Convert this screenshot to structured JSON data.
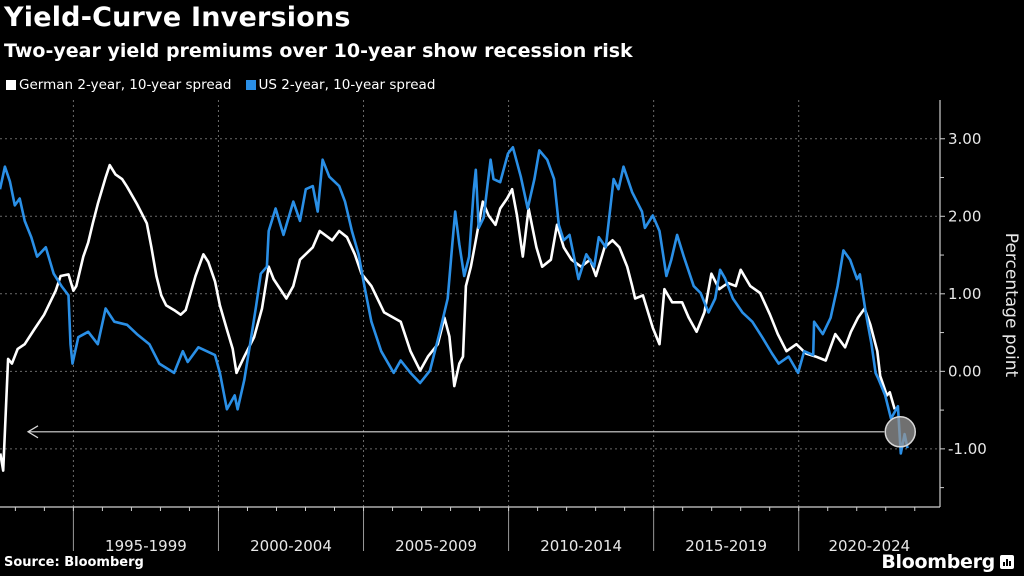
{
  "header": {
    "title": "Yield-Curve Inversions",
    "subtitle": "Two-year yield premiums over 10-year show recession risk"
  },
  "footer": {
    "source": "Source: Bloomberg",
    "brand": "Bloomberg"
  },
  "chart_data": {
    "type": "line",
    "title": "Yield-Curve Inversions",
    "subtitle": "Two-year yield premiums over 10-year show recession risk",
    "xlabel": "",
    "ylabel": "Percentage point",
    "xlim": [
      1992.47,
      2024.87
    ],
    "ylim": [
      -1.75,
      3.5
    ],
    "yticks": [
      3.0,
      2.0,
      1.0,
      0.0,
      -1.0
    ],
    "ytick_labels": [
      "3.00",
      "2.00",
      "1.00",
      "0.00",
      "-1.00"
    ],
    "x_groups": [
      {
        "label": "1995-1999",
        "start": 1995,
        "end": 2000
      },
      {
        "label": "2000-2004",
        "start": 2000,
        "end": 2005
      },
      {
        "label": "2005-2009",
        "start": 2005,
        "end": 2010
      },
      {
        "label": "2010-2014",
        "start": 2010,
        "end": 2015
      },
      {
        "label": "2015-2019",
        "start": 2015,
        "end": 2020
      },
      {
        "label": "2020-2024",
        "start": 2020,
        "end": 2025
      }
    ],
    "grid": true,
    "legend_position": "top-left",
    "annotation": {
      "type": "arrow-left",
      "value": -0.78,
      "highlight_year": 2023.5,
      "highlight_value": -0.78
    },
    "series": [
      {
        "name": "German 2-year, 10-year spread",
        "color": "#ffffff",
        "points": [
          [
            1992.48,
            -1.06
          ],
          [
            1992.58,
            -1.28
          ],
          [
            1992.75,
            0.16
          ],
          [
            1992.88,
            0.1
          ],
          [
            1993.08,
            0.29
          ],
          [
            1993.32,
            0.35
          ],
          [
            1993.65,
            0.54
          ],
          [
            1993.99,
            0.73
          ],
          [
            1994.22,
            0.91
          ],
          [
            1994.39,
            1.04
          ],
          [
            1994.56,
            1.23
          ],
          [
            1994.83,
            1.25
          ],
          [
            1995.0,
            1.04
          ],
          [
            1995.1,
            1.1
          ],
          [
            1995.34,
            1.48
          ],
          [
            1995.51,
            1.66
          ],
          [
            1995.67,
            1.91
          ],
          [
            1995.84,
            2.16
          ],
          [
            1996.11,
            2.5
          ],
          [
            1996.25,
            2.66
          ],
          [
            1996.45,
            2.54
          ],
          [
            1996.68,
            2.48
          ],
          [
            1996.85,
            2.38
          ],
          [
            1997.19,
            2.16
          ],
          [
            1997.53,
            1.91
          ],
          [
            1997.69,
            1.6
          ],
          [
            1997.86,
            1.23
          ],
          [
            1998.03,
            0.98
          ],
          [
            1998.2,
            0.85
          ],
          [
            1998.47,
            0.79
          ],
          [
            1998.7,
            0.73
          ],
          [
            1998.87,
            0.79
          ],
          [
            1999.21,
            1.23
          ],
          [
            1999.48,
            1.51
          ],
          [
            1999.65,
            1.41
          ],
          [
            1999.88,
            1.16
          ],
          [
            2000.05,
            0.85
          ],
          [
            2000.29,
            0.54
          ],
          [
            2000.49,
            0.29
          ],
          [
            2000.62,
            -0.02
          ],
          [
            2000.89,
            0.19
          ],
          [
            2001.23,
            0.44
          ],
          [
            2001.5,
            0.81
          ],
          [
            2001.73,
            1.35
          ],
          [
            2001.9,
            1.19
          ],
          [
            2002.34,
            0.94
          ],
          [
            2002.58,
            1.1
          ],
          [
            2002.81,
            1.44
          ],
          [
            2003.25,
            1.6
          ],
          [
            2003.49,
            1.81
          ],
          [
            2003.92,
            1.69
          ],
          [
            2004.16,
            1.81
          ],
          [
            2004.43,
            1.73
          ],
          [
            2004.7,
            1.51
          ],
          [
            2004.93,
            1.26
          ],
          [
            2005.27,
            1.1
          ],
          [
            2005.71,
            0.76
          ],
          [
            2006.28,
            0.64
          ],
          [
            2006.62,
            0.26
          ],
          [
            2006.95,
            0.01
          ],
          [
            2007.22,
            0.19
          ],
          [
            2007.56,
            0.35
          ],
          [
            2007.79,
            0.69
          ],
          [
            2007.96,
            0.45
          ],
          [
            2008.13,
            -0.19
          ],
          [
            2008.3,
            0.1
          ],
          [
            2008.43,
            0.19
          ],
          [
            2008.53,
            1.1
          ],
          [
            2008.7,
            1.35
          ],
          [
            2008.87,
            1.69
          ],
          [
            2009.11,
            2.19
          ],
          [
            2009.31,
            2.01
          ],
          [
            2009.55,
            1.89
          ],
          [
            2009.71,
            2.1
          ],
          [
            2009.95,
            2.23
          ],
          [
            2010.12,
            2.35
          ],
          [
            2010.29,
            2.01
          ],
          [
            2010.49,
            1.48
          ],
          [
            2010.69,
            2.1
          ],
          [
            2010.96,
            1.6
          ],
          [
            2011.16,
            1.35
          ],
          [
            2011.46,
            1.44
          ],
          [
            2011.67,
            1.89
          ],
          [
            2011.9,
            1.6
          ],
          [
            2012.17,
            1.44
          ],
          [
            2012.5,
            1.35
          ],
          [
            2012.81,
            1.44
          ],
          [
            2013.01,
            1.23
          ],
          [
            2013.31,
            1.6
          ],
          [
            2013.58,
            1.69
          ],
          [
            2013.82,
            1.6
          ],
          [
            2014.09,
            1.35
          ],
          [
            2014.26,
            1.1
          ],
          [
            2014.36,
            0.94
          ],
          [
            2014.63,
            0.98
          ],
          [
            2014.97,
            0.56
          ],
          [
            2015.2,
            0.35
          ],
          [
            2015.37,
            1.06
          ],
          [
            2015.64,
            0.89
          ],
          [
            2015.98,
            0.89
          ],
          [
            2016.21,
            0.69
          ],
          [
            2016.48,
            0.51
          ],
          [
            2016.75,
            0.76
          ],
          [
            2016.99,
            1.26
          ],
          [
            2017.26,
            1.06
          ],
          [
            2017.56,
            1.14
          ],
          [
            2017.83,
            1.1
          ],
          [
            2018.0,
            1.31
          ],
          [
            2018.33,
            1.1
          ],
          [
            2018.67,
            1.01
          ],
          [
            2019.01,
            0.73
          ],
          [
            2019.28,
            0.48
          ],
          [
            2019.58,
            0.26
          ],
          [
            2019.92,
            0.35
          ],
          [
            2020.25,
            0.23
          ],
          [
            2020.59,
            0.19
          ],
          [
            2020.93,
            0.14
          ],
          [
            2021.26,
            0.48
          ],
          [
            2021.6,
            0.31
          ],
          [
            2021.8,
            0.51
          ],
          [
            2022.04,
            0.69
          ],
          [
            2022.27,
            0.81
          ],
          [
            2022.47,
            0.6
          ],
          [
            2022.71,
            0.26
          ],
          [
            2022.81,
            -0.06
          ],
          [
            2023.04,
            -0.31
          ],
          [
            2023.14,
            -0.27
          ],
          [
            2023.31,
            -0.49
          ]
        ]
      },
      {
        "name": "US 2-year, 10-year spread",
        "color": "#2a8fe6",
        "points": [
          [
            1992.47,
            2.35
          ],
          [
            1992.64,
            2.64
          ],
          [
            1992.81,
            2.45
          ],
          [
            1992.98,
            2.14
          ],
          [
            1993.15,
            2.23
          ],
          [
            1993.32,
            1.94
          ],
          [
            1993.55,
            1.73
          ],
          [
            1993.75,
            1.48
          ],
          [
            1994.05,
            1.6
          ],
          [
            1994.32,
            1.26
          ],
          [
            1994.59,
            1.1
          ],
          [
            1994.83,
            0.98
          ],
          [
            1994.9,
            0.35
          ],
          [
            1994.97,
            0.1
          ],
          [
            1995.17,
            0.44
          ],
          [
            1995.51,
            0.51
          ],
          [
            1995.84,
            0.35
          ],
          [
            1996.11,
            0.81
          ],
          [
            1996.41,
            0.64
          ],
          [
            1996.85,
            0.6
          ],
          [
            1997.19,
            0.48
          ],
          [
            1997.62,
            0.35
          ],
          [
            1997.96,
            0.1
          ],
          [
            1998.47,
            -0.02
          ],
          [
            1998.77,
            0.26
          ],
          [
            1998.94,
            0.12
          ],
          [
            1999.31,
            0.31
          ],
          [
            1999.88,
            0.21
          ],
          [
            2000.05,
            -0.02
          ],
          [
            2000.29,
            -0.49
          ],
          [
            2000.56,
            -0.31
          ],
          [
            2000.66,
            -0.49
          ],
          [
            2000.89,
            -0.11
          ],
          [
            2001.13,
            0.44
          ],
          [
            2001.3,
            0.85
          ],
          [
            2001.46,
            1.26
          ],
          [
            2001.67,
            1.35
          ],
          [
            2001.73,
            1.81
          ],
          [
            2001.97,
            2.1
          ],
          [
            2002.24,
            1.76
          ],
          [
            2002.58,
            2.19
          ],
          [
            2002.81,
            1.94
          ],
          [
            2003.01,
            2.35
          ],
          [
            2003.25,
            2.39
          ],
          [
            2003.42,
            2.06
          ],
          [
            2003.59,
            2.73
          ],
          [
            2003.82,
            2.51
          ],
          [
            2004.16,
            2.39
          ],
          [
            2004.36,
            2.19
          ],
          [
            2004.6,
            1.81
          ],
          [
            2004.83,
            1.51
          ],
          [
            2005.03,
            1.1
          ],
          [
            2005.27,
            0.64
          ],
          [
            2005.61,
            0.26
          ],
          [
            2006.04,
            -0.02
          ],
          [
            2006.28,
            0.14
          ],
          [
            2006.62,
            -0.02
          ],
          [
            2006.95,
            -0.15
          ],
          [
            2007.29,
            0.01
          ],
          [
            2007.63,
            0.51
          ],
          [
            2007.9,
            0.94
          ],
          [
            2008.06,
            1.64
          ],
          [
            2008.16,
            2.06
          ],
          [
            2008.3,
            1.64
          ],
          [
            2008.47,
            1.23
          ],
          [
            2008.64,
            1.48
          ],
          [
            2008.8,
            2.35
          ],
          [
            2008.87,
            2.6
          ],
          [
            2008.97,
            1.85
          ],
          [
            2009.14,
            1.98
          ],
          [
            2009.38,
            2.73
          ],
          [
            2009.48,
            2.48
          ],
          [
            2009.71,
            2.44
          ],
          [
            2009.98,
            2.81
          ],
          [
            2010.15,
            2.89
          ],
          [
            2010.42,
            2.51
          ],
          [
            2010.66,
            2.1
          ],
          [
            2010.89,
            2.48
          ],
          [
            2011.06,
            2.85
          ],
          [
            2011.33,
            2.73
          ],
          [
            2011.57,
            2.48
          ],
          [
            2011.73,
            1.89
          ],
          [
            2011.9,
            1.69
          ],
          [
            2012.1,
            1.76
          ],
          [
            2012.41,
            1.19
          ],
          [
            2012.68,
            1.51
          ],
          [
            2012.95,
            1.35
          ],
          [
            2013.11,
            1.73
          ],
          [
            2013.35,
            1.6
          ],
          [
            2013.62,
            2.48
          ],
          [
            2013.79,
            2.35
          ],
          [
            2013.96,
            2.64
          ],
          [
            2014.26,
            2.31
          ],
          [
            2014.6,
            2.06
          ],
          [
            2014.7,
            1.85
          ],
          [
            2014.97,
            2.01
          ],
          [
            2015.2,
            1.81
          ],
          [
            2015.44,
            1.23
          ],
          [
            2015.61,
            1.44
          ],
          [
            2015.81,
            1.76
          ],
          [
            2016.04,
            1.48
          ],
          [
            2016.38,
            1.1
          ],
          [
            2016.62,
            1.01
          ],
          [
            2016.89,
            0.76
          ],
          [
            2017.12,
            0.94
          ],
          [
            2017.29,
            1.31
          ],
          [
            2017.46,
            1.2
          ],
          [
            2017.73,
            0.94
          ],
          [
            2018.06,
            0.76
          ],
          [
            2018.4,
            0.64
          ],
          [
            2018.74,
            0.44
          ],
          [
            2019.08,
            0.23
          ],
          [
            2019.31,
            0.1
          ],
          [
            2019.65,
            0.19
          ],
          [
            2019.98,
            -0.02
          ],
          [
            2020.19,
            0.26
          ],
          [
            2020.5,
            0.21
          ],
          [
            2020.53,
            0.64
          ],
          [
            2020.83,
            0.48
          ],
          [
            2021.1,
            0.69
          ],
          [
            2021.34,
            1.1
          ],
          [
            2021.54,
            1.56
          ],
          [
            2021.77,
            1.44
          ],
          [
            2022.01,
            1.19
          ],
          [
            2022.11,
            1.25
          ],
          [
            2022.31,
            0.76
          ],
          [
            2022.51,
            0.35
          ],
          [
            2022.65,
            -0.02
          ],
          [
            2022.75,
            -0.1
          ],
          [
            2022.98,
            -0.31
          ],
          [
            2023.18,
            -0.61
          ],
          [
            2023.42,
            -0.45
          ],
          [
            2023.52,
            -1.06
          ],
          [
            2023.65,
            -0.81
          ],
          [
            2023.75,
            -0.99
          ]
        ]
      }
    ]
  },
  "legend": [
    {
      "label": "German 2-year, 10-year spread",
      "color": "#ffffff"
    },
    {
      "label": "US 2-year, 10-year spread",
      "color": "#2a8fe6"
    }
  ]
}
